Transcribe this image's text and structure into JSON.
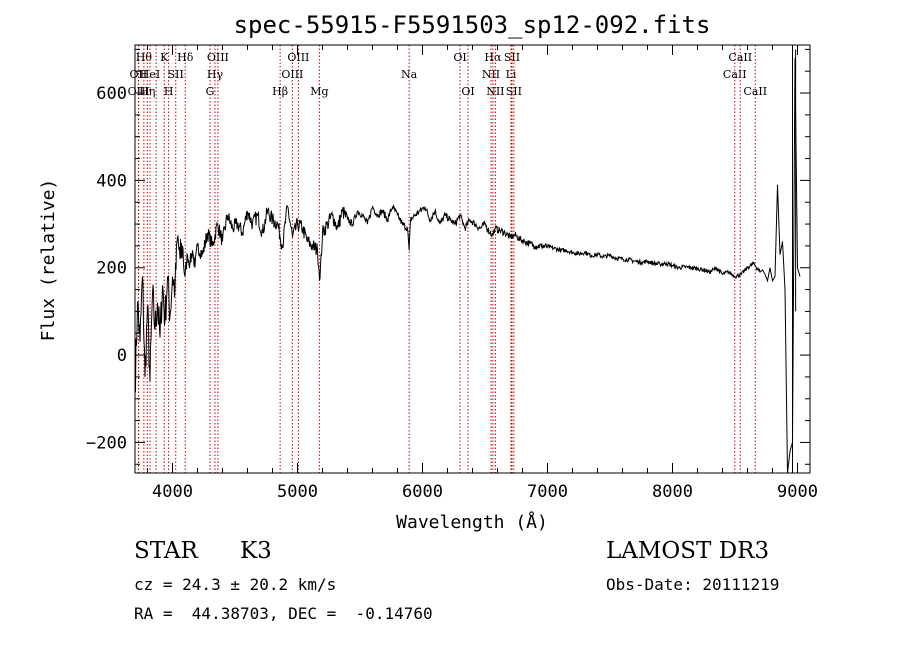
{
  "chart_data": {
    "type": "line",
    "title": "spec-55915-F5591503_sp12-092.fits",
    "xlabel": "Wavelength (Å)",
    "ylabel": "Flux (relative)",
    "xlim": [
      3700,
      9100
    ],
    "ylim": [
      -270,
      710
    ],
    "x_ticks": [
      4000,
      5000,
      6000,
      7000,
      8000,
      9000
    ],
    "y_ticks": [
      -200,
      0,
      200,
      400,
      600
    ],
    "series": [
      {
        "name": "flux",
        "color": "#000000",
        "x": [
          3700,
          3720,
          3740,
          3760,
          3780,
          3800,
          3820,
          3840,
          3860,
          3880,
          3900,
          3920,
          3940,
          3960,
          3980,
          4000,
          4020,
          4040,
          4060,
          4080,
          4100,
          4120,
          4140,
          4160,
          4180,
          4200,
          4240,
          4280,
          4320,
          4360,
          4400,
          4440,
          4480,
          4520,
          4560,
          4600,
          4640,
          4680,
          4720,
          4760,
          4800,
          4840,
          4880,
          4920,
          4960,
          5000,
          5040,
          5080,
          5120,
          5160,
          5180,
          5200,
          5240,
          5280,
          5320,
          5360,
          5400,
          5440,
          5480,
          5520,
          5560,
          5600,
          5640,
          5680,
          5720,
          5760,
          5800,
          5840,
          5880,
          5893,
          5905,
          5940,
          5980,
          6020,
          6060,
          6100,
          6140,
          6180,
          6220,
          6260,
          6300,
          6340,
          6380,
          6420,
          6460,
          6500,
          6540,
          6562,
          6580,
          6620,
          6660,
          6700,
          6740,
          6780,
          6820,
          6860,
          6900,
          6950,
          7000,
          7050,
          7100,
          7150,
          7200,
          7250,
          7300,
          7350,
          7400,
          7450,
          7500,
          7550,
          7600,
          7650,
          7700,
          7750,
          7800,
          7850,
          7900,
          7950,
          8000,
          8050,
          8100,
          8150,
          8200,
          8250,
          8300,
          8350,
          8400,
          8450,
          8500,
          8550,
          8600,
          8650,
          8700,
          8720,
          8740,
          8760,
          8780,
          8800,
          8820,
          8840,
          8860,
          8880,
          8900,
          8920,
          8940,
          8960,
          8980,
          9000,
          9020
        ],
        "y": [
          -80,
          120,
          30,
          180,
          -50,
          110,
          -60,
          140,
          60,
          120,
          40,
          160,
          80,
          180,
          90,
          180,
          150,
          270,
          220,
          250,
          180,
          230,
          210,
          240,
          200,
          250,
          230,
          280,
          250,
          300,
          260,
          320,
          290,
          300,
          280,
          330,
          300,
          320,
          280,
          330,
          310,
          300,
          250,
          340,
          270,
          300,
          290,
          260,
          250,
          240,
          175,
          280,
          300,
          320,
          290,
          330,
          310,
          300,
          330,
          320,
          300,
          340,
          320,
          330,
          310,
          340,
          320,
          300,
          290,
          240,
          310,
          320,
          330,
          340,
          310,
          330,
          300,
          320,
          310,
          300,
          320,
          290,
          310,
          300,
          290,
          300,
          280,
          275,
          290,
          285,
          280,
          270,
          275,
          265,
          260,
          255,
          250,
          250,
          248,
          245,
          240,
          240,
          235,
          232,
          235,
          228,
          230,
          225,
          228,
          222,
          220,
          218,
          215,
          212,
          215,
          210,
          208,
          210,
          205,
          200,
          202,
          200,
          198,
          195,
          190,
          200,
          185,
          190,
          180,
          185,
          200,
          210,
          190,
          195,
          185,
          170,
          200,
          170,
          180,
          390,
          230,
          260,
          150,
          -270,
          -220,
          -200,
          680,
          200,
          180
        ],
        "spikes": [
          {
            "x": 8960,
            "top": 790,
            "bottom": -280
          },
          {
            "x": 8985,
            "top": 700,
            "bottom": 100
          }
        ]
      }
    ],
    "lines": [
      {
        "x": 3727,
        "label": "OII",
        "row": 1
      },
      {
        "x": 3729,
        "label": "OIII",
        "row": 2
      },
      {
        "x": 3771,
        "label": "Hθ",
        "row": 0
      },
      {
        "x": 3798,
        "label": "Hη",
        "row": 2
      },
      {
        "x": 3820,
        "label": "HeI",
        "row": 1
      },
      {
        "x": 3869,
        "label": "",
        "row": 2
      },
      {
        "x": 3934,
        "label": "K",
        "row": 0
      },
      {
        "x": 3969,
        "label": "H",
        "row": 2
      },
      {
        "x": 4026,
        "label": "SII",
        "row": 1
      },
      {
        "x": 4102,
        "label": "Hδ",
        "row": 0
      },
      {
        "x": 4300,
        "label": "G",
        "row": 2
      },
      {
        "x": 4340,
        "label": "Hγ",
        "row": 1
      },
      {
        "x": 4363,
        "label": "OIII",
        "row": 0
      },
      {
        "x": 4861,
        "label": "Hβ",
        "row": 2
      },
      {
        "x": 4959,
        "label": "OIII",
        "row": 1
      },
      {
        "x": 5007,
        "label": "OIII",
        "row": 0
      },
      {
        "x": 5175,
        "label": "Mg",
        "row": 2
      },
      {
        "x": 5893,
        "label": "Na",
        "row": 1
      },
      {
        "x": 6300,
        "label": "OI",
        "row": 0
      },
      {
        "x": 6364,
        "label": "OI",
        "row": 2
      },
      {
        "x": 6548,
        "label": "NII",
        "row": 1
      },
      {
        "x": 6563,
        "label": "Hα",
        "row": 0
      },
      {
        "x": 6583,
        "label": "NII",
        "row": 2
      },
      {
        "x": 6708,
        "label": "Li",
        "row": 1
      },
      {
        "x": 6716,
        "label": "SII",
        "row": 0
      },
      {
        "x": 6731,
        "label": "SII",
        "row": 2
      },
      {
        "x": 8498,
        "label": "CaII",
        "row": 1
      },
      {
        "x": 8542,
        "label": "CaII",
        "row": 0
      },
      {
        "x": 8662,
        "label": "CaII",
        "row": 2
      }
    ],
    "colors": {
      "line": "#cc0000",
      "spectrum": "#000000",
      "axes": "#000000"
    }
  },
  "info": {
    "class": "STAR",
    "subclass": "K3",
    "survey": "LAMOST DR3",
    "cz": "cz = 24.3 ± 20.2 km/s",
    "obs_date": "Obs-Date: 20111219",
    "radec": "RA =  44.38703, DEC =  -0.14760"
  }
}
